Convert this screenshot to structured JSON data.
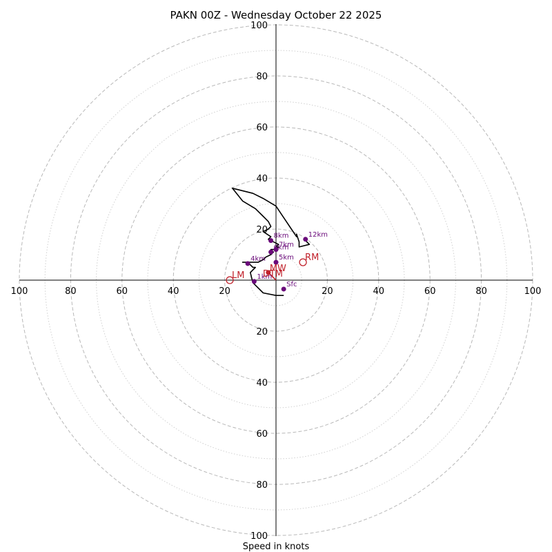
{
  "chart_data": {
    "type": "hodograph",
    "title": "PAKN 00Z - Wednesday October 22 2025",
    "xlabel": "Speed in knots",
    "range": [
      -100,
      100
    ],
    "ring_labels": [
      20,
      40,
      60,
      80,
      100
    ],
    "x_tick_labels": [
      "100",
      "80",
      "60",
      "40",
      "20",
      "20",
      "40",
      "60",
      "80",
      "100"
    ],
    "y_tick_labels": [
      "100",
      "80",
      "60",
      "40",
      "20",
      "20",
      "40",
      "60",
      "80",
      "100"
    ],
    "colors": {
      "trace": "#000000",
      "heights": "#6a0a7a",
      "motion": "#c0202a",
      "grid": "#b8b8b8"
    },
    "hodograph": [
      [
        3,
        -6
      ],
      [
        0,
        -6
      ],
      [
        -5,
        -5
      ],
      [
        -9,
        -1
      ],
      [
        -10,
        3
      ],
      [
        -8,
        5
      ],
      [
        -9,
        5
      ],
      [
        -10,
        6
      ],
      [
        -11,
        7
      ],
      [
        -13,
        7
      ],
      [
        -10,
        7
      ],
      [
        -7,
        7
      ],
      [
        -5,
        8
      ],
      [
        -4,
        9
      ],
      [
        -2,
        10
      ],
      [
        -1,
        11
      ],
      [
        -2,
        12
      ],
      [
        0,
        12
      ],
      [
        1,
        13
      ],
      [
        0,
        13
      ],
      [
        1,
        14
      ],
      [
        -3,
        16
      ],
      [
        -2,
        17
      ],
      [
        -5,
        19
      ],
      [
        -3,
        20
      ],
      [
        -2,
        21
      ],
      [
        -3,
        23
      ],
      [
        -4,
        24
      ],
      [
        -5,
        25
      ],
      [
        -8,
        28
      ],
      [
        -13,
        31
      ],
      [
        -17,
        36
      ],
      [
        -9,
        34
      ],
      [
        -5,
        32
      ],
      [
        0,
        29
      ],
      [
        2,
        26
      ],
      [
        4,
        23
      ],
      [
        6,
        20
      ],
      [
        8,
        17
      ],
      [
        8,
        18
      ],
      [
        9,
        15
      ],
      [
        9,
        13
      ],
      [
        13,
        14
      ],
      [
        11,
        16
      ]
    ],
    "height_markers": [
      {
        "label": "Sfc",
        "u": 3,
        "v": -3.5
      },
      {
        "label": "1km",
        "u": -8.5,
        "v": -0.5
      },
      {
        "label": "4km",
        "u": -11,
        "v": 6.5
      },
      {
        "label": "5km",
        "u": 0,
        "v": 7
      },
      {
        "label": "6km",
        "u": -2,
        "v": 11
      },
      {
        "label": "7km",
        "u": 0,
        "v": 12
      },
      {
        "label": "8km",
        "u": -2,
        "v": 15.5
      },
      {
        "label": "12km",
        "u": 11.5,
        "v": 16
      }
    ],
    "storm_motion": [
      {
        "label": "RM",
        "u": 10.5,
        "v": 7
      },
      {
        "label": "LM",
        "u": -18,
        "v": 0
      },
      {
        "label": "MW",
        "u": -3,
        "v": 3
      },
      {
        "label": "DTM",
        "u": -3,
        "v": 2.5
      }
    ],
    "shear_vector": {
      "from": [
        0,
        0
      ],
      "to": [
        -3,
        3
      ]
    }
  }
}
